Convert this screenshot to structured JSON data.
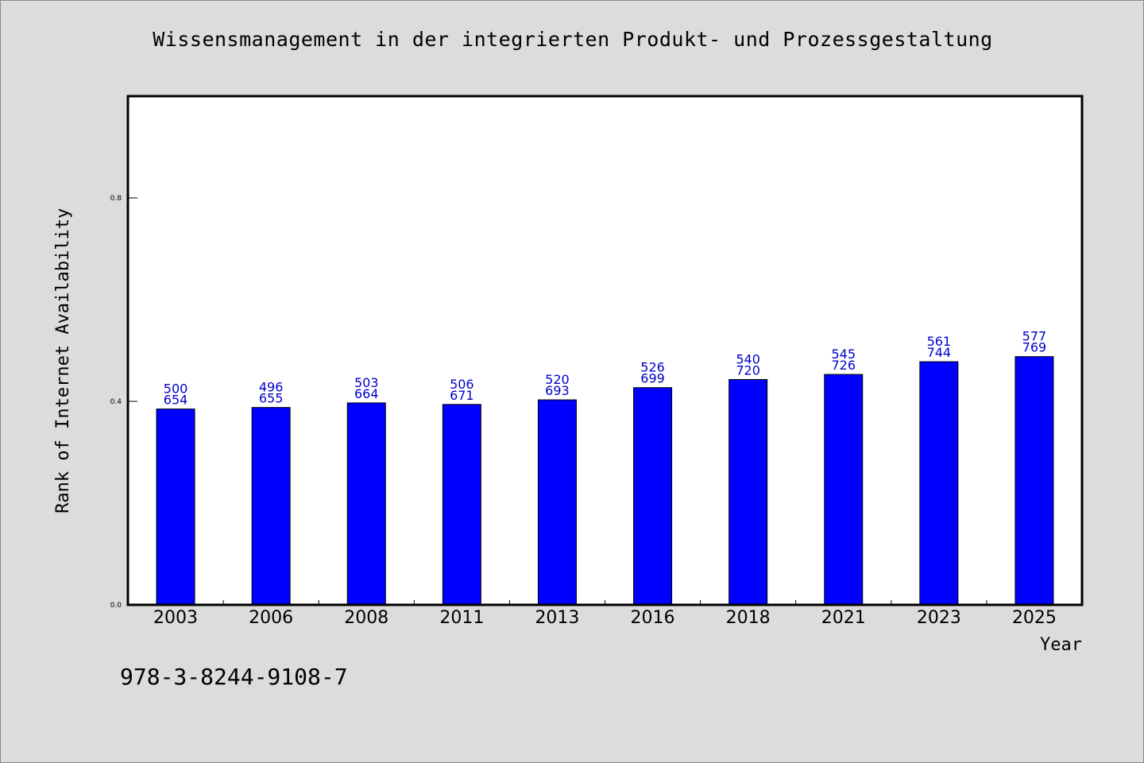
{
  "chart_data": {
    "type": "bar",
    "title": "Wissensmanagement in der integrierten Produkt- und Prozessgestaltung",
    "xlabel": "Year",
    "ylabel": "Rank of Internet Availability",
    "categories": [
      "2003",
      "2006",
      "2008",
      "2011",
      "2013",
      "2016",
      "2018",
      "2021",
      "2023",
      "2025"
    ],
    "values": [
      0.385,
      0.388,
      0.397,
      0.394,
      0.403,
      0.427,
      0.443,
      0.453,
      0.478,
      0.488
    ],
    "bar_labels_top": [
      "500",
      "496",
      "503",
      "506",
      "520",
      "526",
      "540",
      "545",
      "561",
      "577"
    ],
    "bar_labels_bottom": [
      "654",
      "655",
      "664",
      "671",
      "693",
      "699",
      "720",
      "726",
      "744",
      "769"
    ],
    "yticks": [
      "0.0",
      "0.4",
      "0.8"
    ],
    "ylim": [
      0,
      1.0
    ],
    "grid": false,
    "legend": "none",
    "colors": {
      "bar": "#0000ff",
      "label": "#0000cc",
      "plot_bg": "#ffffff",
      "page_bg": "#dcdcdc"
    }
  },
  "footer": {
    "isbn": "978-3-8244-9108-7"
  }
}
